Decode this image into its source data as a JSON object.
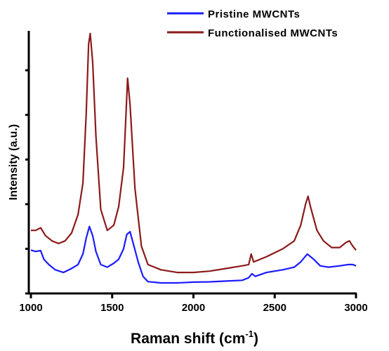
{
  "chart_data": {
    "type": "line",
    "title": "",
    "xlabel": "Raman shift (cm",
    "xlabel_sup": "-1",
    "xlabel_close": ")",
    "ylabel": "Intensity (a.u.)",
    "xlim": [
      1000,
      3000
    ],
    "ylim": [
      0,
      100
    ],
    "x_ticks": [
      1000,
      1500,
      2000,
      2500,
      3000
    ],
    "x_tick_labels": [
      "1000",
      "1500",
      "2000",
      "2500",
      "3000"
    ],
    "y_ticks": [
      0,
      17,
      34,
      51,
      68,
      85
    ],
    "y_tick_labels_shown": false,
    "grid": false,
    "legend_position": "top-right",
    "series": [
      {
        "name": "Pristine MWCNTs",
        "color": "#1b1bff",
        "x": [
          1000,
          1030,
          1060,
          1080,
          1110,
          1150,
          1200,
          1250,
          1290,
          1320,
          1340,
          1360,
          1380,
          1400,
          1430,
          1470,
          1510,
          1540,
          1570,
          1590,
          1610,
          1630,
          1660,
          1690,
          1720,
          1800,
          1900,
          2000,
          2100,
          2200,
          2300,
          2340,
          2360,
          2380,
          2450,
          2550,
          2620,
          2660,
          2700,
          2740,
          2780,
          2830,
          2900,
          2950,
          2980,
          3000
        ],
        "y": [
          16.5,
          16.0,
          16.3,
          13.0,
          11.0,
          9.0,
          8.0,
          9.5,
          11.0,
          15.0,
          21.0,
          25.5,
          22.0,
          16.0,
          11.0,
          10.0,
          11.5,
          13.0,
          17.0,
          22.5,
          23.5,
          19.0,
          12.0,
          6.5,
          4.5,
          4.0,
          4.0,
          4.3,
          4.4,
          4.7,
          5.0,
          6.0,
          7.5,
          6.5,
          8.0,
          9.0,
          10.0,
          12.0,
          15.0,
          13.0,
          10.5,
          10.0,
          10.5,
          11.0,
          11.0,
          10.5
        ]
      },
      {
        "name": "Functionalised MWCNTs",
        "color": "#8b1a1a",
        "x": [
          1000,
          1030,
          1060,
          1090,
          1130,
          1170,
          1210,
          1250,
          1290,
          1320,
          1340,
          1355,
          1365,
          1380,
          1400,
          1430,
          1470,
          1510,
          1540,
          1570,
          1585,
          1595,
          1610,
          1640,
          1680,
          1720,
          1800,
          1900,
          2000,
          2100,
          2200,
          2300,
          2340,
          2355,
          2370,
          2450,
          2550,
          2620,
          2660,
          2690,
          2705,
          2720,
          2760,
          2800,
          2850,
          2900,
          2940,
          2960,
          2980,
          3000
        ],
        "y": [
          24.0,
          24.0,
          25.0,
          22.0,
          20.0,
          19.0,
          20.0,
          23.0,
          30.0,
          42.0,
          68.0,
          95.0,
          99.0,
          88.0,
          60.0,
          32.0,
          24.0,
          26.0,
          33.0,
          48.0,
          68.0,
          82.0,
          72.0,
          40.0,
          18.0,
          11.0,
          9.0,
          8.0,
          8.0,
          8.5,
          9.5,
          10.5,
          11.0,
          15.0,
          12.0,
          14.0,
          17.0,
          20.0,
          26.0,
          34.0,
          37.0,
          33.0,
          24.0,
          20.0,
          17.5,
          17.5,
          19.5,
          20.0,
          18.0,
          16.5
        ]
      }
    ]
  }
}
